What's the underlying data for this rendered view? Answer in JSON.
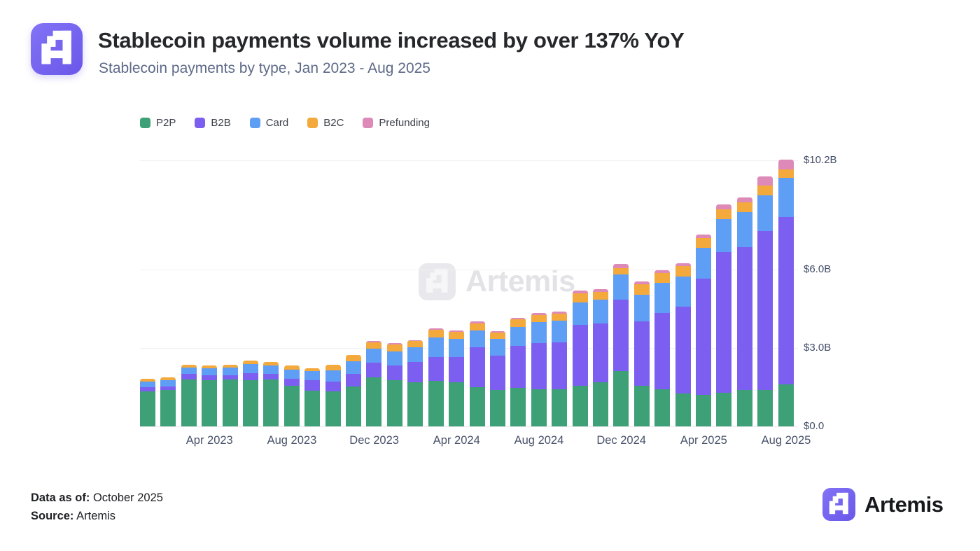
{
  "header": {
    "title": "Stablecoin payments volume increased by over 137% YoY",
    "subtitle": "Stablecoin payments by type, Jan 2023 - Aug 2025"
  },
  "watermark_text": "Artemis",
  "footer": {
    "data_as_of_label": "Data as of:",
    "data_as_of_value": "October 2025",
    "source_label": "Source:",
    "source_value": "Artemis",
    "brand_name": "Artemis"
  },
  "chart_data": {
    "type": "bar",
    "stacked": true,
    "unit": "USD billions",
    "grid": true,
    "legend_position": "top-left",
    "ylim": [
      0,
      10.2
    ],
    "x": [
      "Jan 2023",
      "Feb 2023",
      "Mar 2023",
      "Apr 2023",
      "May 2023",
      "Jun 2023",
      "Jul 2023",
      "Aug 2023",
      "Sep 2023",
      "Oct 2023",
      "Nov 2023",
      "Dec 2023",
      "Jan 2024",
      "Feb 2024",
      "Mar 2024",
      "Apr 2024",
      "May 2024",
      "Jun 2024",
      "Jul 2024",
      "Aug 2024",
      "Sep 2024",
      "Oct 2024",
      "Nov 2024",
      "Dec 2024",
      "Jan 2025",
      "Feb 2025",
      "Mar 2025",
      "Apr 2025",
      "May 2025",
      "Jun 2025",
      "Jul 2025",
      "Aug 2025"
    ],
    "x_tick_indices": [
      3,
      7,
      11,
      15,
      19,
      23,
      27,
      31
    ],
    "x_tick_labels": [
      "Apr 2023",
      "Aug 2023",
      "Dec 2023",
      "Apr 2024",
      "Aug 2024",
      "Dec 2024",
      "Apr 2025",
      "Aug 2025"
    ],
    "y_ticks": [
      {
        "value": 0,
        "label": "$0.0"
      },
      {
        "value": 3,
        "label": "$3.0B"
      },
      {
        "value": 6,
        "label": "$6.0B"
      },
      {
        "value": 10.2,
        "label": "$10.2B"
      }
    ],
    "series": [
      {
        "name": "P2P",
        "color": "#3ea076",
        "values": [
          1.35,
          1.4,
          1.8,
          1.78,
          1.8,
          1.78,
          1.8,
          1.55,
          1.37,
          1.35,
          1.52,
          1.87,
          1.76,
          1.7,
          1.75,
          1.7,
          1.49,
          1.39,
          1.48,
          1.43,
          1.41,
          1.55,
          1.68,
          2.12,
          1.56,
          1.43,
          1.26,
          1.21,
          1.3,
          1.39,
          1.39,
          1.6
        ]
      },
      {
        "name": "B2B",
        "color": "#7c5ff0",
        "values": [
          0.15,
          0.12,
          0.2,
          0.18,
          0.15,
          0.25,
          0.22,
          0.28,
          0.39,
          0.37,
          0.49,
          0.57,
          0.58,
          0.77,
          0.9,
          0.95,
          1.53,
          1.33,
          1.61,
          1.77,
          1.8,
          2.33,
          2.27,
          2.72,
          2.46,
          2.92,
          3.32,
          4.44,
          5.38,
          5.48,
          6.1,
          6.42
        ]
      },
      {
        "name": "Card",
        "color": "#5f9ef5",
        "values": [
          0.22,
          0.25,
          0.25,
          0.28,
          0.3,
          0.35,
          0.32,
          0.35,
          0.36,
          0.42,
          0.49,
          0.53,
          0.53,
          0.55,
          0.75,
          0.7,
          0.66,
          0.62,
          0.73,
          0.8,
          0.84,
          0.87,
          0.9,
          0.97,
          1.03,
          1.15,
          1.15,
          1.18,
          1.25,
          1.33,
          1.36,
          1.49
        ]
      },
      {
        "name": "B2C",
        "color": "#f3a93c",
        "values": [
          0.09,
          0.1,
          0.1,
          0.1,
          0.12,
          0.15,
          0.14,
          0.15,
          0.11,
          0.22,
          0.24,
          0.25,
          0.27,
          0.25,
          0.3,
          0.28,
          0.27,
          0.24,
          0.27,
          0.27,
          0.27,
          0.34,
          0.29,
          0.26,
          0.38,
          0.38,
          0.4,
          0.38,
          0.37,
          0.37,
          0.37,
          0.34
        ]
      },
      {
        "name": "Prefunding",
        "color": "#dd8ab8",
        "values": [
          0,
          0,
          0,
          0,
          0,
          0,
          0,
          0,
          0,
          0,
          0,
          0.05,
          0.04,
          0.04,
          0.05,
          0.05,
          0.07,
          0.07,
          0.06,
          0.07,
          0.07,
          0.1,
          0.11,
          0.16,
          0.11,
          0.11,
          0.11,
          0.13,
          0.2,
          0.2,
          0.35,
          0.35
        ]
      }
    ]
  }
}
